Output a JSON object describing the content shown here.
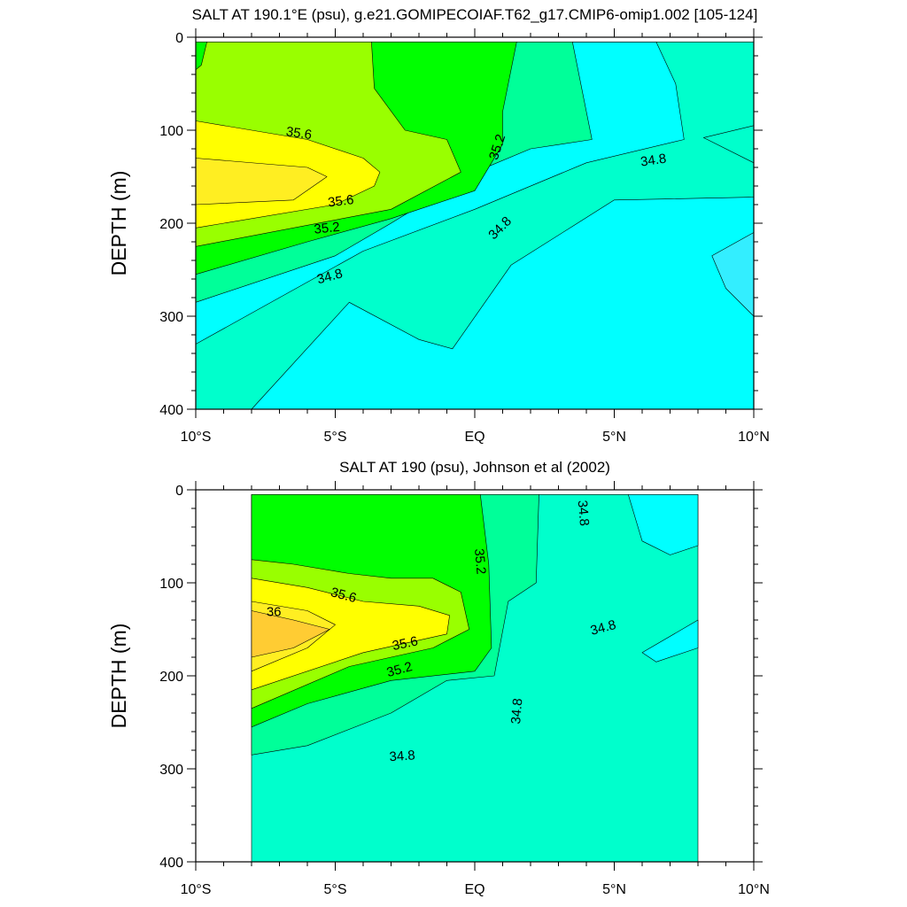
{
  "chart_data": [
    {
      "type": "contour",
      "title": "SALT AT 190.1°E (psu), g.e21.GOMIPECOIAF.T62_g17.CMIP6-omip1.002 [105-124]",
      "xlabel": "",
      "ylabel": "DEPTH (m)",
      "xlim": [
        -10,
        10
      ],
      "ylim": [
        400,
        0
      ],
      "x_ticks": [
        {
          "value": -10,
          "label": "10°S"
        },
        {
          "value": -5,
          "label": "5°S"
        },
        {
          "value": 0,
          "label": "EQ"
        },
        {
          "value": 5,
          "label": "5°N"
        },
        {
          "value": 10,
          "label": "10°N"
        }
      ],
      "y_ticks": [
        {
          "value": 0,
          "label": "0"
        },
        {
          "value": 100,
          "label": "100"
        },
        {
          "value": 200,
          "label": "200"
        },
        {
          "value": 300,
          "label": "300"
        },
        {
          "value": 400,
          "label": "400"
        }
      ],
      "data_extent": {
        "x": [
          -10,
          10
        ],
        "depth": [
          5,
          400
        ]
      },
      "level_colors": {
        "below_34.6": "#33eeff",
        "34.6_34.8": "#00ffff",
        "34.8_35.0": "#00ffcc",
        "35.0_35.2": "#00ff99",
        "35.2_35.4": "#00ff00",
        "35.4_35.6": "#99ff00",
        "35.6_35.8": "#ffff00",
        "35.8_36.0": "#ffee22",
        "above_36.0": "#ffcc33"
      },
      "regions": [
        {
          "level": "34.6_34.8",
          "points": [
            [
              -10,
              5
            ],
            [
              10,
              5
            ],
            [
              10,
              400
            ],
            [
              -10,
              400
            ]
          ]
        },
        {
          "level": "34.8_35.0",
          "points": [
            [
              -10,
              5
            ],
            [
              6.5,
              5
            ],
            [
              7.2,
              50
            ],
            [
              7.5,
              110
            ],
            [
              4,
              135
            ],
            [
              0,
              185
            ],
            [
              -4,
              230
            ],
            [
              -10,
              330
            ],
            [
              -10,
              400
            ],
            [
              -8,
              400
            ],
            [
              -4.5,
              285
            ],
            [
              -2,
              325
            ],
            [
              -0.8,
              335
            ],
            [
              1.3,
              245
            ],
            [
              5,
              175
            ],
            [
              10,
              172
            ],
            [
              10,
              5
            ]
          ]
        },
        {
          "level": "35.0_35.2",
          "points": [
            [
              -10,
              5
            ],
            [
              3.5,
              5
            ],
            [
              4,
              80
            ],
            [
              4.2,
              110
            ],
            [
              2,
              120
            ],
            [
              0,
              145
            ],
            [
              -3,
              200
            ],
            [
              -5,
              235
            ],
            [
              -10,
              285
            ],
            [
              -10,
              5
            ]
          ]
        },
        {
          "level": "35.2_35.4",
          "points": [
            [
              -10,
              5
            ],
            [
              1.5,
              5
            ],
            [
              1,
              80
            ],
            [
              1,
              115
            ],
            [
              0,
              165
            ],
            [
              -3,
              195
            ],
            [
              -6,
              220
            ],
            [
              -10,
              255
            ],
            [
              -10,
              5
            ]
          ]
        },
        {
          "level": "35.4_35.6",
          "points": [
            [
              -10,
              5
            ],
            [
              -3.7,
              5
            ],
            [
              -3.6,
              55
            ],
            [
              -2.5,
              100
            ],
            [
              -1,
              110
            ],
            [
              -0.5,
              145
            ],
            [
              -3,
              185
            ],
            [
              -10,
              225
            ],
            [
              -10,
              5
            ]
          ]
        },
        {
          "level": "35.6_35.8",
          "points": [
            [
              -10,
              90
            ],
            [
              -6,
              110
            ],
            [
              -4,
              130
            ],
            [
              -3.4,
              145
            ],
            [
              -3.6,
              160
            ],
            [
              -5,
              180
            ],
            [
              -10,
              205
            ]
          ]
        },
        {
          "level": "35.8_36.0",
          "points": [
            [
              -10,
              130
            ],
            [
              -6,
              140
            ],
            [
              -5.3,
              150
            ],
            [
              -6.5,
              175
            ],
            [
              -10,
              180
            ]
          ]
        },
        {
          "level": "34.8_35.0",
          "points": [
            [
              8.2,
              108
            ],
            [
              10,
              95
            ],
            [
              10,
              135
            ]
          ]
        },
        {
          "level": "below_34.6",
          "points": [
            [
              8.5,
              235
            ],
            [
              10,
              210
            ],
            [
              10,
              300
            ],
            [
              9,
              270
            ]
          ]
        },
        {
          "level": "35.2_35.4",
          "points": [
            [
              -10,
              5
            ],
            [
              -9.6,
              5
            ],
            [
              -9.8,
              30
            ],
            [
              -10,
              35
            ]
          ]
        }
      ],
      "contour_labels": [
        {
          "text": "35.6",
          "x": -6.3,
          "y": 103,
          "angle": 8
        },
        {
          "text": "35.6",
          "x": -4.8,
          "y": 176,
          "angle": -7
        },
        {
          "text": "35.2",
          "x": -5.3,
          "y": 205,
          "angle": -6
        },
        {
          "text": "35.2",
          "x": 0.8,
          "y": 118,
          "angle": -72
        },
        {
          "text": "34.8",
          "x": -5.2,
          "y": 257,
          "angle": -15
        },
        {
          "text": "34.8",
          "x": 0.9,
          "y": 205,
          "angle": -45
        },
        {
          "text": "34.8",
          "x": 6.4,
          "y": 132,
          "angle": -8
        }
      ]
    },
    {
      "type": "contour",
      "title": "SALT AT 190 (psu), Johnson et al (2002)",
      "xlabel": "",
      "ylabel": "DEPTH (m)",
      "xlim": [
        -10,
        10
      ],
      "ylim": [
        400,
        0
      ],
      "x_ticks": [
        {
          "value": -10,
          "label": "10°S"
        },
        {
          "value": -5,
          "label": "5°S"
        },
        {
          "value": 0,
          "label": "EQ"
        },
        {
          "value": 5,
          "label": "5°N"
        },
        {
          "value": 10,
          "label": "10°N"
        }
      ],
      "y_ticks": [
        {
          "value": 0,
          "label": "0"
        },
        {
          "value": 100,
          "label": "100"
        },
        {
          "value": 200,
          "label": "200"
        },
        {
          "value": 300,
          "label": "300"
        },
        {
          "value": 400,
          "label": "400"
        }
      ],
      "data_extent": {
        "x": [
          -8,
          8
        ],
        "depth": [
          5,
          400
        ]
      },
      "level_colors": {
        "34.6_34.8": "#00ffff",
        "34.8_35.0": "#00ffcc",
        "35.0_35.2": "#00ff99",
        "35.2_35.4": "#00ff00",
        "35.4_35.6": "#99ff00",
        "35.6_35.8": "#ffff00",
        "35.8_36.0": "#ffee22",
        "above_36.0": "#ffcc33"
      },
      "regions": [
        {
          "level": "34.8_35.0",
          "points": [
            [
              -8,
              5
            ],
            [
              8,
              5
            ],
            [
              8,
              400
            ],
            [
              -8,
              400
            ]
          ]
        },
        {
          "level": "34.6_34.8",
          "points": [
            [
              5.5,
              5
            ],
            [
              8,
              5
            ],
            [
              8,
              60
            ],
            [
              7,
              70
            ],
            [
              6,
              55
            ]
          ]
        },
        {
          "level": "34.6_34.8",
          "points": [
            [
              6,
              175
            ],
            [
              8,
              140
            ],
            [
              8,
              170
            ],
            [
              6.5,
              185
            ]
          ]
        },
        {
          "level": "35.0_35.2",
          "points": [
            [
              -8,
              5
            ],
            [
              2.3,
              5
            ],
            [
              2.2,
              100
            ],
            [
              1.2,
              120
            ],
            [
              0.7,
              200
            ],
            [
              -1,
              205
            ],
            [
              -3,
              240
            ],
            [
              -6,
              275
            ],
            [
              -8,
              285
            ]
          ]
        },
        {
          "level": "35.2_35.4",
          "points": [
            [
              -8,
              5
            ],
            [
              0.2,
              5
            ],
            [
              0.5,
              80
            ],
            [
              0.6,
              170
            ],
            [
              0,
              195
            ],
            [
              -3,
              205
            ],
            [
              -6,
              230
            ],
            [
              -8,
              255
            ]
          ]
        },
        {
          "level": "35.4_35.6",
          "points": [
            [
              -8,
              75
            ],
            [
              -6.5,
              80
            ],
            [
              -4.5,
              90
            ],
            [
              -3,
              95
            ],
            [
              -1.5,
              95
            ],
            [
              -0.5,
              110
            ],
            [
              -0.2,
              150
            ],
            [
              -1.5,
              170
            ],
            [
              -4.5,
              190
            ],
            [
              -8,
              235
            ]
          ]
        },
        {
          "level": "35.6_35.8",
          "points": [
            [
              -8,
              95
            ],
            [
              -6,
              105
            ],
            [
              -4,
              120
            ],
            [
              -2,
              125
            ],
            [
              -0.9,
              135
            ],
            [
              -1,
              155
            ],
            [
              -4,
              175
            ],
            [
              -8,
              215
            ]
          ]
        },
        {
          "level": "35.8_36.0",
          "points": [
            [
              -8,
              120
            ],
            [
              -6,
              130
            ],
            [
              -5,
              145
            ],
            [
              -6,
              170
            ],
            [
              -8,
              195
            ]
          ]
        },
        {
          "level": "above_36.0",
          "points": [
            [
              -8,
              130
            ],
            [
              -6.5,
              140
            ],
            [
              -5.2,
              150
            ],
            [
              -6.5,
              170
            ],
            [
              -8,
              180
            ]
          ]
        }
      ],
      "contour_labels": [
        {
          "text": "36",
          "x": -7.2,
          "y": 131,
          "angle": 0
        },
        {
          "text": "35.6",
          "x": -4.7,
          "y": 113,
          "angle": 15
        },
        {
          "text": "35.6",
          "x": -2.5,
          "y": 165,
          "angle": -12
        },
        {
          "text": "35.2",
          "x": -2.7,
          "y": 193,
          "angle": -15
        },
        {
          "text": "35.2",
          "x": 0.2,
          "y": 77,
          "angle": 85
        },
        {
          "text": "34.8",
          "x": -2.6,
          "y": 286,
          "angle": -4
        },
        {
          "text": "34.8",
          "x": 1.5,
          "y": 238,
          "angle": -85
        },
        {
          "text": "34.8",
          "x": 4.6,
          "y": 148,
          "angle": -15
        },
        {
          "text": "34.8",
          "x": 3.9,
          "y": 25,
          "angle": 85
        }
      ]
    }
  ]
}
